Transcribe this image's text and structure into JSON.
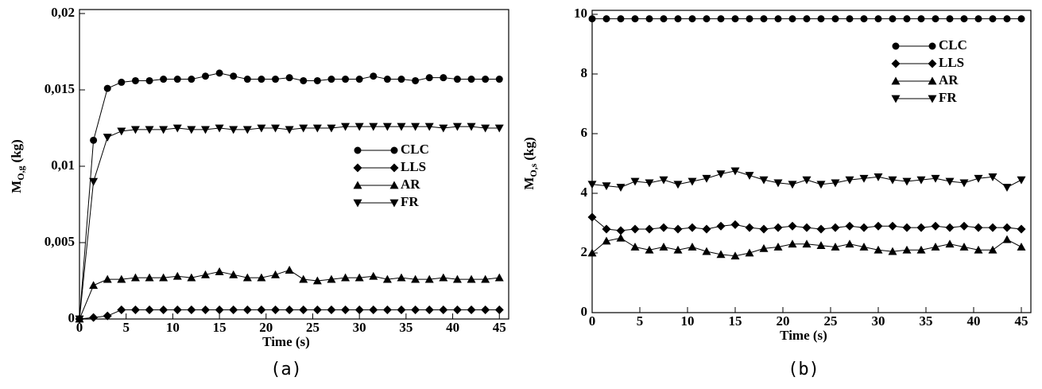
{
  "chart_data": [
    {
      "type": "line",
      "caption": "(a)",
      "xlabel": "Time (s)",
      "ylabel": {
        "symbol": "M",
        "subscript": "O,g",
        "unit": "(kg)"
      },
      "xlim": [
        0,
        46
      ],
      "xticks": [
        0,
        5,
        10,
        15,
        20,
        25,
        30,
        35,
        40,
        45
      ],
      "ylim": [
        0,
        0.02
      ],
      "yticks": [
        0,
        {
          "value": 0.005,
          "label": "0,005"
        },
        {
          "value": 0.01,
          "label": "0,01"
        },
        {
          "value": 0.015,
          "label": "0,015"
        },
        {
          "value": 0.02,
          "label": "0,02"
        }
      ],
      "legend": "center right",
      "x": [
        0,
        1.5,
        3,
        4.5,
        6,
        7.5,
        9,
        10.5,
        12,
        13.5,
        15,
        16.5,
        18,
        19.5,
        21,
        22.5,
        24,
        25.5,
        27,
        28.5,
        30,
        31.5,
        33,
        34.5,
        36,
        37.5,
        39,
        40.5,
        42,
        43.5,
        45
      ],
      "series": [
        {
          "name": "CLC",
          "color": "#000000",
          "marker": "circle",
          "values": [
            0,
            0.0117,
            0.0151,
            0.0155,
            0.0156,
            0.0156,
            0.0157,
            0.0157,
            0.0157,
            0.0159,
            0.0161,
            0.0159,
            0.0157,
            0.0157,
            0.0157,
            0.0158,
            0.0156,
            0.0156,
            0.0157,
            0.0157,
            0.0157,
            0.0159,
            0.0157,
            0.0157,
            0.0156,
            0.0158,
            0.0158,
            0.0157,
            0.0157,
            0.0157,
            0.0157
          ]
        },
        {
          "name": "LLS",
          "color": "#000000",
          "marker": "diamond",
          "values": [
            0,
            0.0001,
            0.0002,
            0.0006,
            0.0006,
            0.0006,
            0.0006,
            0.0006,
            0.0006,
            0.0006,
            0.0006,
            0.0006,
            0.0006,
            0.0006,
            0.0006,
            0.0006,
            0.0006,
            0.0006,
            0.0006,
            0.0006,
            0.0006,
            0.0006,
            0.0006,
            0.0006,
            0.0006,
            0.0006,
            0.0006,
            0.0006,
            0.0006,
            0.0006,
            0.0006
          ]
        },
        {
          "name": "AR",
          "color": "#000000",
          "marker": "triangle-up",
          "values": [
            0,
            0.0022,
            0.0026,
            0.0026,
            0.0027,
            0.0027,
            0.0027,
            0.0028,
            0.0027,
            0.0029,
            0.0031,
            0.0029,
            0.0027,
            0.0027,
            0.0029,
            0.0032,
            0.0026,
            0.0025,
            0.0026,
            0.0027,
            0.0027,
            0.0028,
            0.0026,
            0.0027,
            0.0026,
            0.0026,
            0.0027,
            0.0026,
            0.0026,
            0.0026,
            0.0027
          ]
        },
        {
          "name": "FR",
          "color": "#000000",
          "marker": "triangle-down",
          "values": [
            0,
            0.009,
            0.0119,
            0.0123,
            0.0124,
            0.0124,
            0.0124,
            0.0125,
            0.0124,
            0.0124,
            0.0125,
            0.0124,
            0.0124,
            0.0125,
            0.0125,
            0.0124,
            0.0125,
            0.0125,
            0.0125,
            0.0126,
            0.0126,
            0.0126,
            0.0126,
            0.0126,
            0.0126,
            0.0126,
            0.0125,
            0.0126,
            0.0126,
            0.0125,
            0.0125
          ]
        }
      ]
    },
    {
      "type": "line",
      "caption": "(b)",
      "xlabel": "Time (s)",
      "ylabel": {
        "symbol": "M",
        "subscript": "O,s",
        "unit": "(kg)"
      },
      "xlim": [
        0,
        46
      ],
      "xticks": [
        0,
        5,
        10,
        15,
        20,
        25,
        30,
        35,
        40,
        45
      ],
      "ylim": [
        0,
        10
      ],
      "yticks": [
        0,
        2,
        4,
        6,
        8,
        10
      ],
      "legend": "upper right",
      "x": [
        0,
        1.5,
        3,
        4.5,
        6,
        7.5,
        9,
        10.5,
        12,
        13.5,
        15,
        16.5,
        18,
        19.5,
        21,
        22.5,
        24,
        25.5,
        27,
        28.5,
        30,
        31.5,
        33,
        34.5,
        36,
        37.5,
        39,
        40.5,
        42,
        43.5,
        45
      ],
      "series": [
        {
          "name": "CLC",
          "color": "#000000",
          "marker": "circle",
          "values": [
            9.85,
            9.85,
            9.85,
            9.85,
            9.85,
            9.85,
            9.85,
            9.85,
            9.85,
            9.85,
            9.85,
            9.85,
            9.85,
            9.85,
            9.85,
            9.85,
            9.85,
            9.85,
            9.85,
            9.85,
            9.85,
            9.85,
            9.85,
            9.85,
            9.85,
            9.85,
            9.85,
            9.85,
            9.85,
            9.85,
            9.85
          ]
        },
        {
          "name": "LLS",
          "color": "#000000",
          "marker": "diamond",
          "values": [
            3.2,
            2.8,
            2.75,
            2.8,
            2.8,
            2.85,
            2.8,
            2.85,
            2.8,
            2.9,
            2.95,
            2.85,
            2.8,
            2.85,
            2.9,
            2.85,
            2.8,
            2.85,
            2.9,
            2.85,
            2.9,
            2.9,
            2.85,
            2.85,
            2.9,
            2.85,
            2.9,
            2.85,
            2.85,
            2.85,
            2.8
          ]
        },
        {
          "name": "AR",
          "color": "#000000",
          "marker": "triangle-up",
          "values": [
            2.0,
            2.4,
            2.5,
            2.2,
            2.1,
            2.2,
            2.1,
            2.2,
            2.05,
            1.95,
            1.9,
            2.0,
            2.15,
            2.2,
            2.3,
            2.3,
            2.25,
            2.2,
            2.3,
            2.2,
            2.1,
            2.05,
            2.1,
            2.1,
            2.2,
            2.3,
            2.2,
            2.1,
            2.1,
            2.45,
            2.2
          ]
        },
        {
          "name": "FR",
          "color": "#000000",
          "marker": "triangle-down",
          "values": [
            4.3,
            4.25,
            4.2,
            4.4,
            4.35,
            4.45,
            4.3,
            4.4,
            4.5,
            4.65,
            4.75,
            4.6,
            4.45,
            4.35,
            4.3,
            4.45,
            4.3,
            4.35,
            4.45,
            4.5,
            4.55,
            4.45,
            4.4,
            4.45,
            4.5,
            4.4,
            4.35,
            4.5,
            4.55,
            4.2,
            4.45
          ]
        }
      ]
    }
  ]
}
